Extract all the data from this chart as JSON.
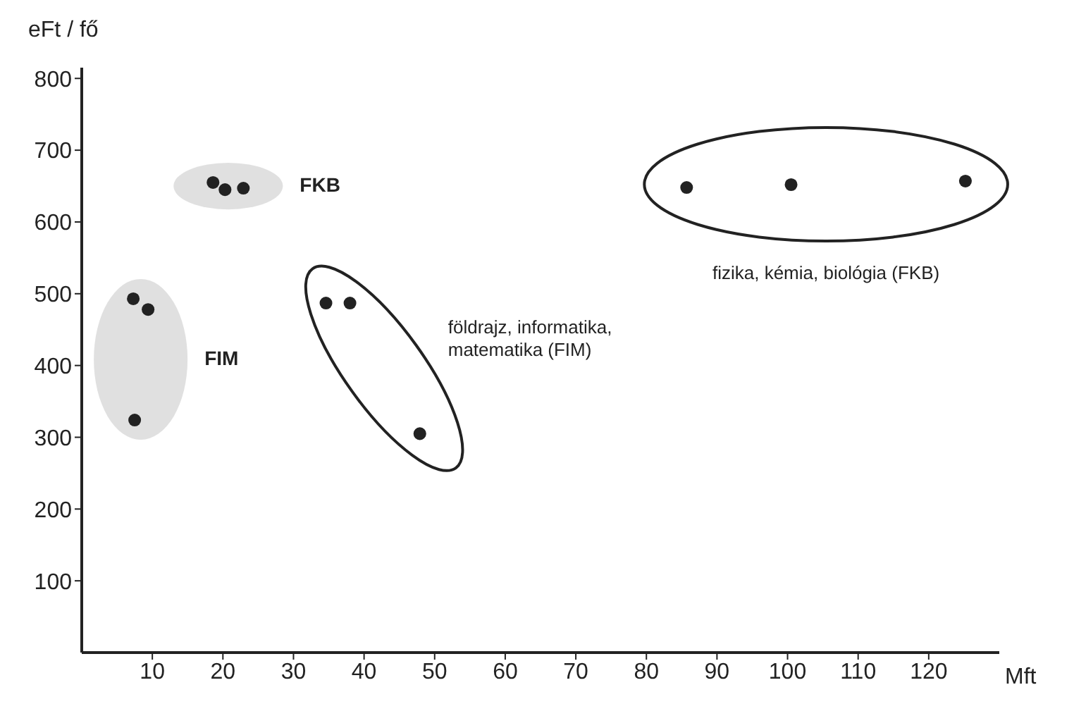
{
  "chart_data": {
    "type": "scatter",
    "xlabel": "Mft",
    "ylabel": "eFt / fő",
    "xlim": [
      0,
      130
    ],
    "xticks": [
      10,
      20,
      30,
      40,
      50,
      60,
      70,
      80,
      90,
      100,
      110,
      120
    ],
    "ylim": [
      0,
      815
    ],
    "yticks": [
      100,
      200,
      300,
      400,
      500,
      600,
      700,
      800
    ],
    "grid": false,
    "legend": false,
    "marker": "circle",
    "series": [
      {
        "color": "#222222",
        "x": [
          18.6,
          20.3,
          22.9
        ],
        "values": [
          655,
          645,
          647
        ]
      },
      {
        "color": "#222222",
        "x": [
          7.3,
          9.4,
          7.5
        ],
        "values": [
          493,
          478,
          324
        ]
      },
      {
        "color": "#222222",
        "x": [
          34.6,
          38,
          47.9
        ],
        "values": [
          487,
          487,
          305
        ]
      },
      {
        "color": "#222222",
        "x": [
          85.7,
          100.5,
          125.2
        ],
        "values": [
          648,
          652,
          657
        ]
      }
    ],
    "annotations": [
      "FKB",
      "FIM",
      "földrajz, informatika,\nmatematika (FIM)",
      "fizika, kémia, biológia (FKB)"
    ]
  }
}
